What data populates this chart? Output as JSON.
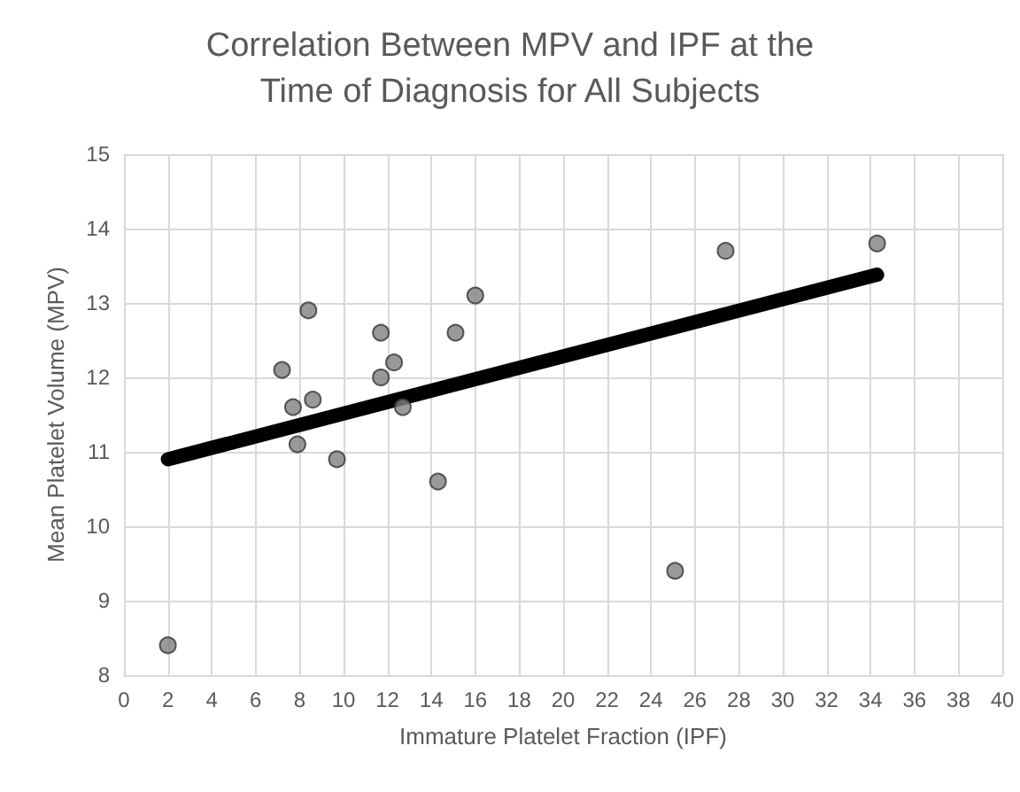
{
  "chart_data": {
    "type": "scatter",
    "title": "Correlation Between MPV and IPF at the\nTime of Diagnosis for All Subjects",
    "xlabel": "Immature Platelet Fraction (IPF)",
    "ylabel": "Mean Platelet Volume (MPV)",
    "xlim": [
      0,
      40
    ],
    "xticks": [
      0,
      2,
      4,
      6,
      8,
      10,
      12,
      14,
      16,
      18,
      20,
      22,
      24,
      26,
      28,
      30,
      32,
      34,
      36,
      38,
      40
    ],
    "ylim": [
      8,
      15
    ],
    "yticks": [
      8,
      9,
      10,
      11,
      12,
      13,
      14,
      15
    ],
    "grid": true,
    "marker": "circle",
    "series": [
      {
        "color": "#7f7f7f",
        "x": [
          2,
          7.2,
          7.7,
          7.9,
          8.4,
          8.6,
          9.7,
          11.7,
          11.7,
          12.3,
          12.7,
          14.3,
          15.1,
          16.0,
          25.1,
          27.4,
          34.3
        ],
        "values": [
          8.4,
          12.1,
          11.6,
          11.1,
          12.9,
          11.7,
          10.9,
          12.6,
          12.0,
          12.2,
          11.6,
          10.6,
          12.6,
          13.1,
          9.4,
          13.7,
          13.8
        ]
      },
      {
        "type": "line",
        "color": "#000000",
        "x": [
          2,
          34.3
        ],
        "values": [
          10.9,
          13.38
        ],
        "marker": "none"
      }
    ]
  }
}
